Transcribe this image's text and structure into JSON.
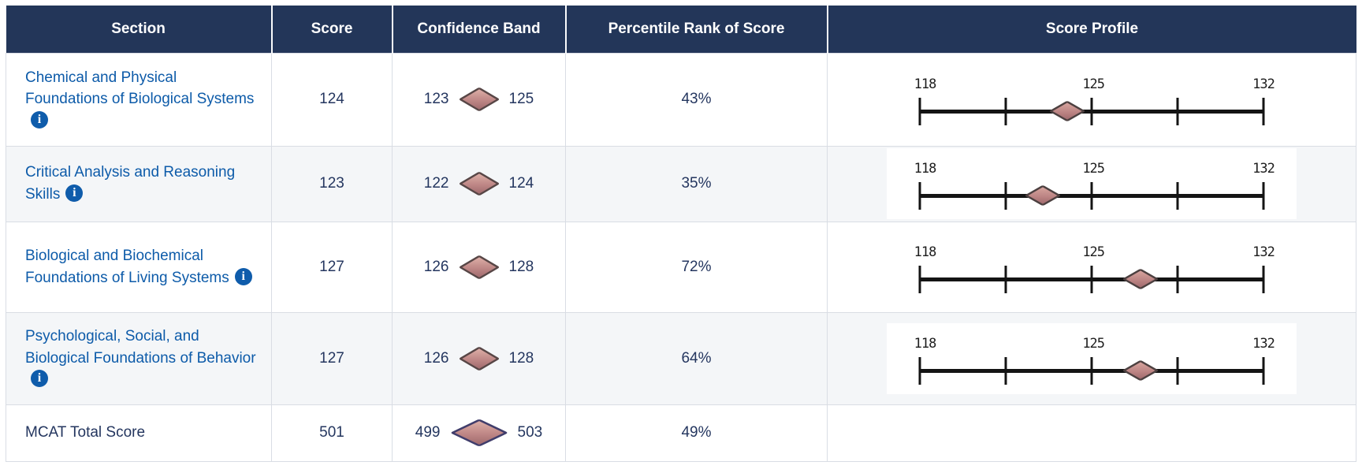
{
  "table": {
    "headers": [
      "Section",
      "Score",
      "Confidence Band",
      "Percentile Rank of Score",
      "Score Profile"
    ],
    "rows": [
      {
        "section": "Chemical and Physical Foundations of Biological Systems",
        "score": "124",
        "band_low": "123",
        "band_high": "125",
        "percentile": "43%"
      },
      {
        "section": "Critical Analysis and Reasoning Skills",
        "score": "123",
        "band_low": "122",
        "band_high": "124",
        "percentile": "35%"
      },
      {
        "section": "Biological and Biochemical Foundations of Living Systems",
        "score": "127",
        "band_low": "126",
        "band_high": "128",
        "percentile": "72%"
      },
      {
        "section": "Psychological, Social, and Biological Foundations of Behavior",
        "score": "127",
        "band_low": "126",
        "band_high": "128",
        "percentile": "64%"
      },
      {
        "section": "MCAT Total Score",
        "score": "501",
        "band_low": "499",
        "band_high": "503",
        "percentile": "49%"
      }
    ]
  },
  "profile_axis": {
    "min": 118,
    "max": 132,
    "labels": [
      "118",
      "125",
      "132"
    ]
  },
  "icons": {
    "info": "info-icon",
    "confidence_marker": "diamond"
  },
  "colors": {
    "header_bg": "#233659",
    "header_text": "#ffffff",
    "body_text_navy": "#24365f",
    "link_blue": "#0d5ba9",
    "info_icon_blue": "#0f5cab",
    "row_alt_bg": "#f4f6f8",
    "cell_border": "#d9dde4",
    "axis_black": "#141414",
    "diamond_fill": "#c18a88",
    "diamond_border": "#574646",
    "total_diamond_border": "#403d6b"
  },
  "chart_data": [
    {
      "type": "scatter",
      "title": "Score Profile - Chemical and Physical Foundations of Biological Systems",
      "x_range": [
        118,
        132
      ],
      "x_ticks": [
        118,
        121.5,
        125,
        128.5,
        132
      ],
      "x_tick_labels": [
        "118",
        "125",
        "132"
      ],
      "grid": false,
      "legend": "none",
      "series": [
        {
          "name": "section score",
          "marker": "diamond",
          "x": [
            124
          ]
        }
      ]
    },
    {
      "type": "scatter",
      "title": "Score Profile - Critical Analysis and Reasoning Skills",
      "x_range": [
        118,
        132
      ],
      "x_ticks": [
        118,
        121.5,
        125,
        128.5,
        132
      ],
      "x_tick_labels": [
        "118",
        "125",
        "132"
      ],
      "grid": false,
      "legend": "none",
      "series": [
        {
          "name": "section score",
          "marker": "diamond",
          "x": [
            123
          ]
        }
      ]
    },
    {
      "type": "scatter",
      "title": "Score Profile - Biological and Biochemical Foundations of Living Systems",
      "x_range": [
        118,
        132
      ],
      "x_ticks": [
        118,
        121.5,
        125,
        128.5,
        132
      ],
      "x_tick_labels": [
        "118",
        "125",
        "132"
      ],
      "grid": false,
      "legend": "none",
      "series": [
        {
          "name": "section score",
          "marker": "diamond",
          "x": [
            127
          ]
        }
      ]
    },
    {
      "type": "scatter",
      "title": "Score Profile - Psychological, Social, and Biological Foundations of Behavior",
      "x_range": [
        118,
        132
      ],
      "x_ticks": [
        118,
        121.5,
        125,
        128.5,
        132
      ],
      "x_tick_labels": [
        "118",
        "125",
        "132"
      ],
      "grid": false,
      "legend": "none",
      "series": [
        {
          "name": "section score",
          "marker": "diamond",
          "x": [
            127
          ]
        }
      ]
    }
  ]
}
